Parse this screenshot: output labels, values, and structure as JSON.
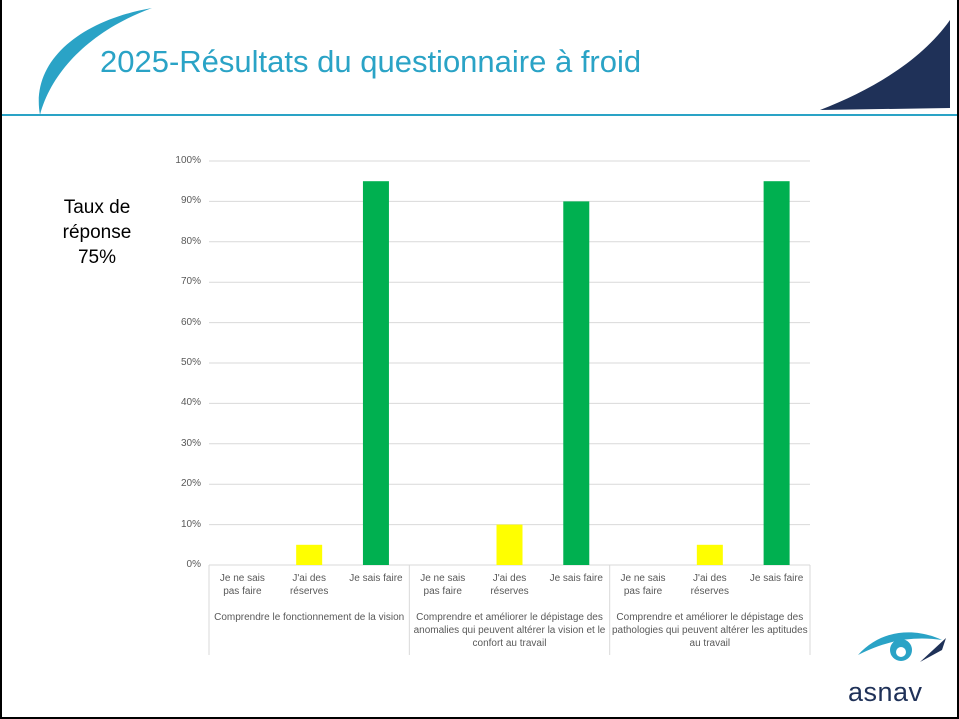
{
  "title": "2025-Résultats du questionnaire à froid",
  "annotation": [
    "Taux de",
    "réponse",
    "75%"
  ],
  "logo": "asnav",
  "chart_data": {
    "type": "bar",
    "categories": [
      "Je ne sais pas faire",
      "J'ai des réserves",
      "Je sais faire",
      "Je ne sais pas faire",
      "J'ai des réserves",
      "Je sais faire",
      "Je ne sais pas faire",
      "J'ai des réserves",
      "Je sais faire"
    ],
    "values": [
      0,
      5,
      95,
      0,
      10,
      90,
      0,
      5,
      95
    ],
    "colors": [
      "#ffc000",
      "#ffff00",
      "#00b050",
      "#ffc000",
      "#ffff00",
      "#00b050",
      "#ffc000",
      "#ffff00",
      "#00b050"
    ],
    "groups": [
      "Comprendre le fonctionnement de la vision",
      "Comprendre et améliorer le dépistage des anomalies qui peuvent altérer la vision et le confort au travail",
      "Comprendre et améliorer le dépistage des pathologies qui peuvent altérer les aptitudes au travail"
    ],
    "ylim": [
      0,
      100
    ],
    "yticks": [
      {
        "value": 0,
        "label": "0%"
      },
      {
        "value": 10,
        "label": "10%"
      },
      {
        "value": 20,
        "label": "20%"
      },
      {
        "value": 30,
        "label": "30%"
      },
      {
        "value": 40,
        "label": "40%"
      },
      {
        "value": 50,
        "label": "50%"
      },
      {
        "value": 60,
        "label": "60%"
      },
      {
        "value": 70,
        "label": "70%"
      },
      {
        "value": 80,
        "label": "80%"
      },
      {
        "value": 90,
        "label": "90%"
      },
      {
        "value": 100,
        "label": "100%"
      }
    ],
    "grid": true
  }
}
